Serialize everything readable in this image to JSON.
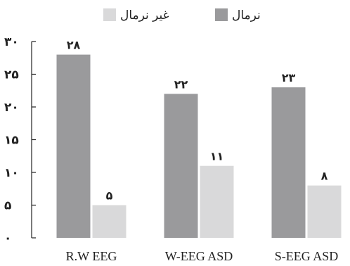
{
  "chart_data": {
    "type": "bar",
    "categories": [
      "R.W EEG",
      "W-EEG ASD",
      "S-EEG ASD"
    ],
    "series": [
      {
        "name": "نرمال",
        "values": [
          28,
          22,
          23
        ],
        "value_labels": [
          "۲۸",
          "۲۲",
          "۲۳"
        ],
        "color": "#9a9a9c"
      },
      {
        "name": "غیر نرمال",
        "values": [
          5,
          11,
          8
        ],
        "value_labels": [
          "۵",
          "۱۱",
          "۸"
        ],
        "color": "#d9d9da"
      }
    ],
    "ylim": [
      0,
      30
    ],
    "yticks": [
      0,
      5,
      10,
      15,
      20,
      25,
      30
    ],
    "ytick_labels": [
      "۰",
      "۵",
      "۱۰",
      "۱۵",
      "۲۰",
      "۲۵",
      "۳۰"
    ],
    "grid": false,
    "legend_position": "top"
  }
}
